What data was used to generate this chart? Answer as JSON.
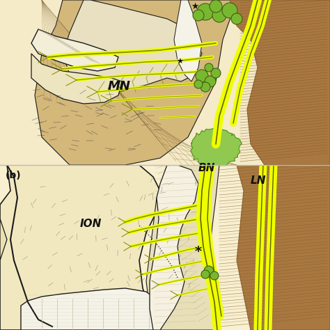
{
  "skin_light": "#F5EBC8",
  "skin_cream": "#EFE0A8",
  "skin_tan": "#D4B87A",
  "bone_white": "#F0EDE0",
  "bone_light": "#E8E0C0",
  "muscle_brown": "#A87840",
  "muscle_dark": "#8B6030",
  "hatch_color": "#8B7040",
  "nerve_yellow": "#EEFF00",
  "nerve_dark": "#606000",
  "nerve_olive": "#8B9400",
  "lymph_green": "#78B830",
  "lymph_dark": "#406010",
  "outline_dark": "#1A1A1A",
  "text_black": "#111111",
  "divider": "#D0C8B0",
  "green_blob": "#90C850",
  "panel_a_label": "MN",
  "panel_b_label_b": "(b)",
  "panel_b_label_BN": "BN",
  "panel_b_label_LN": "LN",
  "panel_b_label_ION": "ION"
}
